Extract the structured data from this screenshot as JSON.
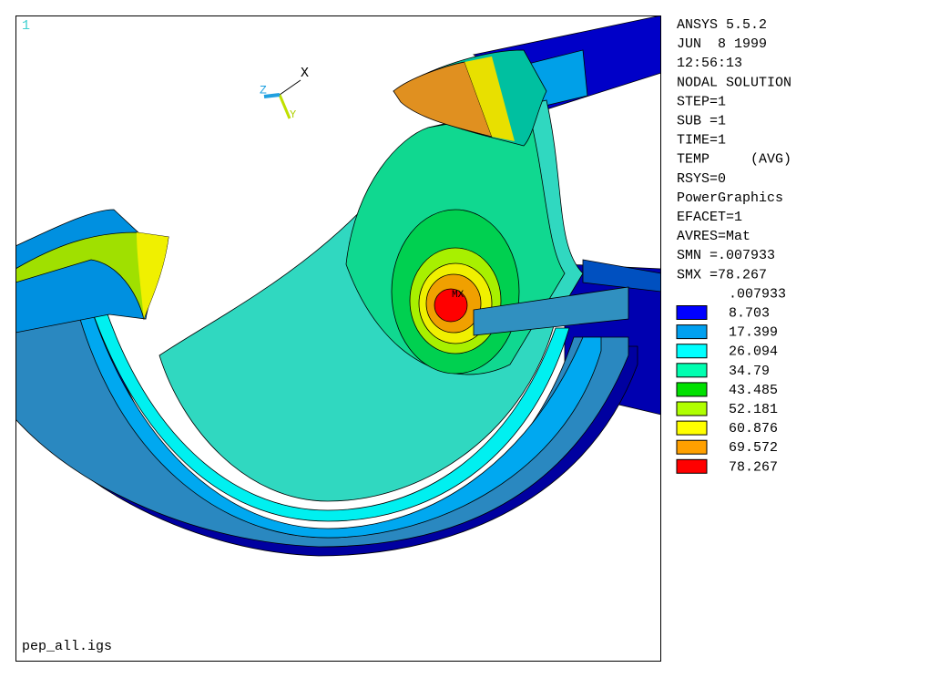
{
  "viewport": {
    "number": "1",
    "filename": "pep_all.igs",
    "max_marker": "MX",
    "triad": {
      "x": "X",
      "y": "Y",
      "z": "Z"
    }
  },
  "info": [
    "ANSYS 5.5.2",
    "JUN  8 1999",
    "12:56:13",
    "NODAL SOLUTION",
    "STEP=1",
    "SUB =1",
    "TIME=1",
    "TEMP     (AVG)",
    "RSYS=0",
    "PowerGraphics",
    "EFACET=1",
    "AVRES=Mat",
    "SMN =.007933",
    "SMX =78.267"
  ],
  "legend": {
    "levels": [
      ".007933",
      "8.703",
      "17.399",
      "26.094",
      "34.79",
      "43.485",
      "52.181",
      "60.876",
      "69.572",
      "78.267"
    ],
    "colors": [
      "#0000ff",
      "#00a0f0",
      "#00ffff",
      "#00ffb0",
      "#00e000",
      "#b0ff00",
      "#ffff00",
      "#ffa000",
      "#ff0000"
    ]
  }
}
